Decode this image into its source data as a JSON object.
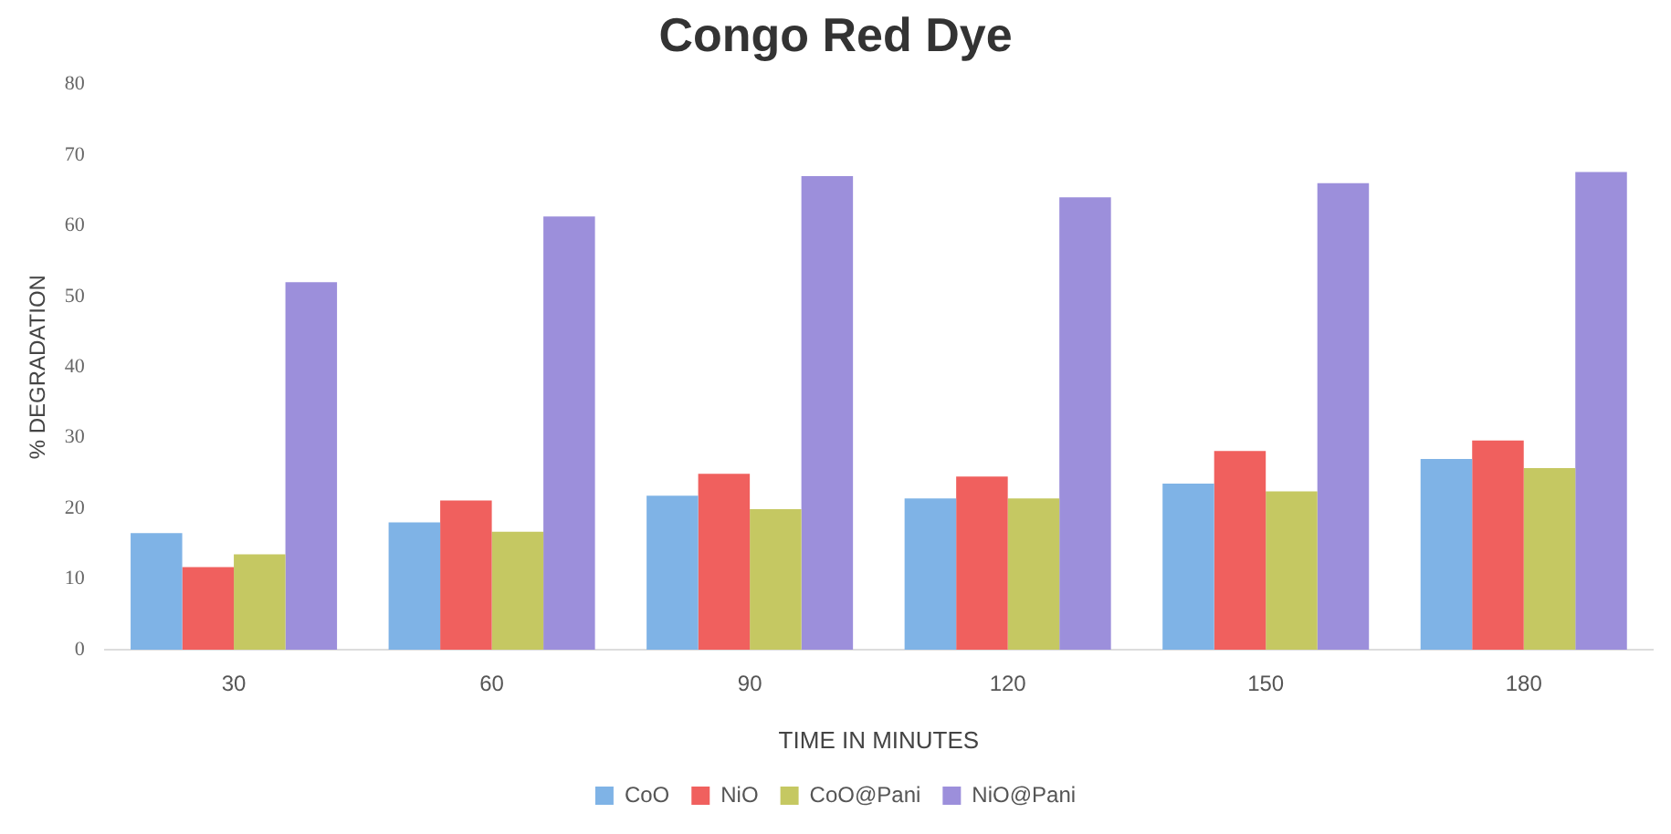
{
  "chart_data": {
    "type": "bar",
    "title": "Congo Red Dye",
    "xlabel": "TIME IN MINUTES",
    "ylabel": "% DEGRADATION",
    "categories": [
      "30",
      "60",
      "90",
      "120",
      "150",
      "180"
    ],
    "series": [
      {
        "name": "CoO",
        "color": "#7fb3e6",
        "values": [
          16.5,
          18,
          21.8,
          21.4,
          23.5,
          27
        ]
      },
      {
        "name": "NiO",
        "color": "#f0605e",
        "values": [
          11.7,
          21.1,
          24.9,
          24.5,
          28.1,
          29.6
        ]
      },
      {
        "name": "CoO@Pani",
        "color": "#c5c862",
        "values": [
          13.5,
          16.7,
          19.9,
          21.4,
          22.4,
          25.7
        ]
      },
      {
        "name": "NiO@Pani",
        "color": "#9c8fdb",
        "values": [
          52,
          61.3,
          67,
          64,
          66,
          67.6
        ]
      }
    ],
    "ylim": [
      0,
      80
    ],
    "yticks": [
      0,
      10,
      20,
      30,
      40,
      50,
      60,
      70,
      80
    ],
    "grid": false,
    "legend": "bottom"
  }
}
